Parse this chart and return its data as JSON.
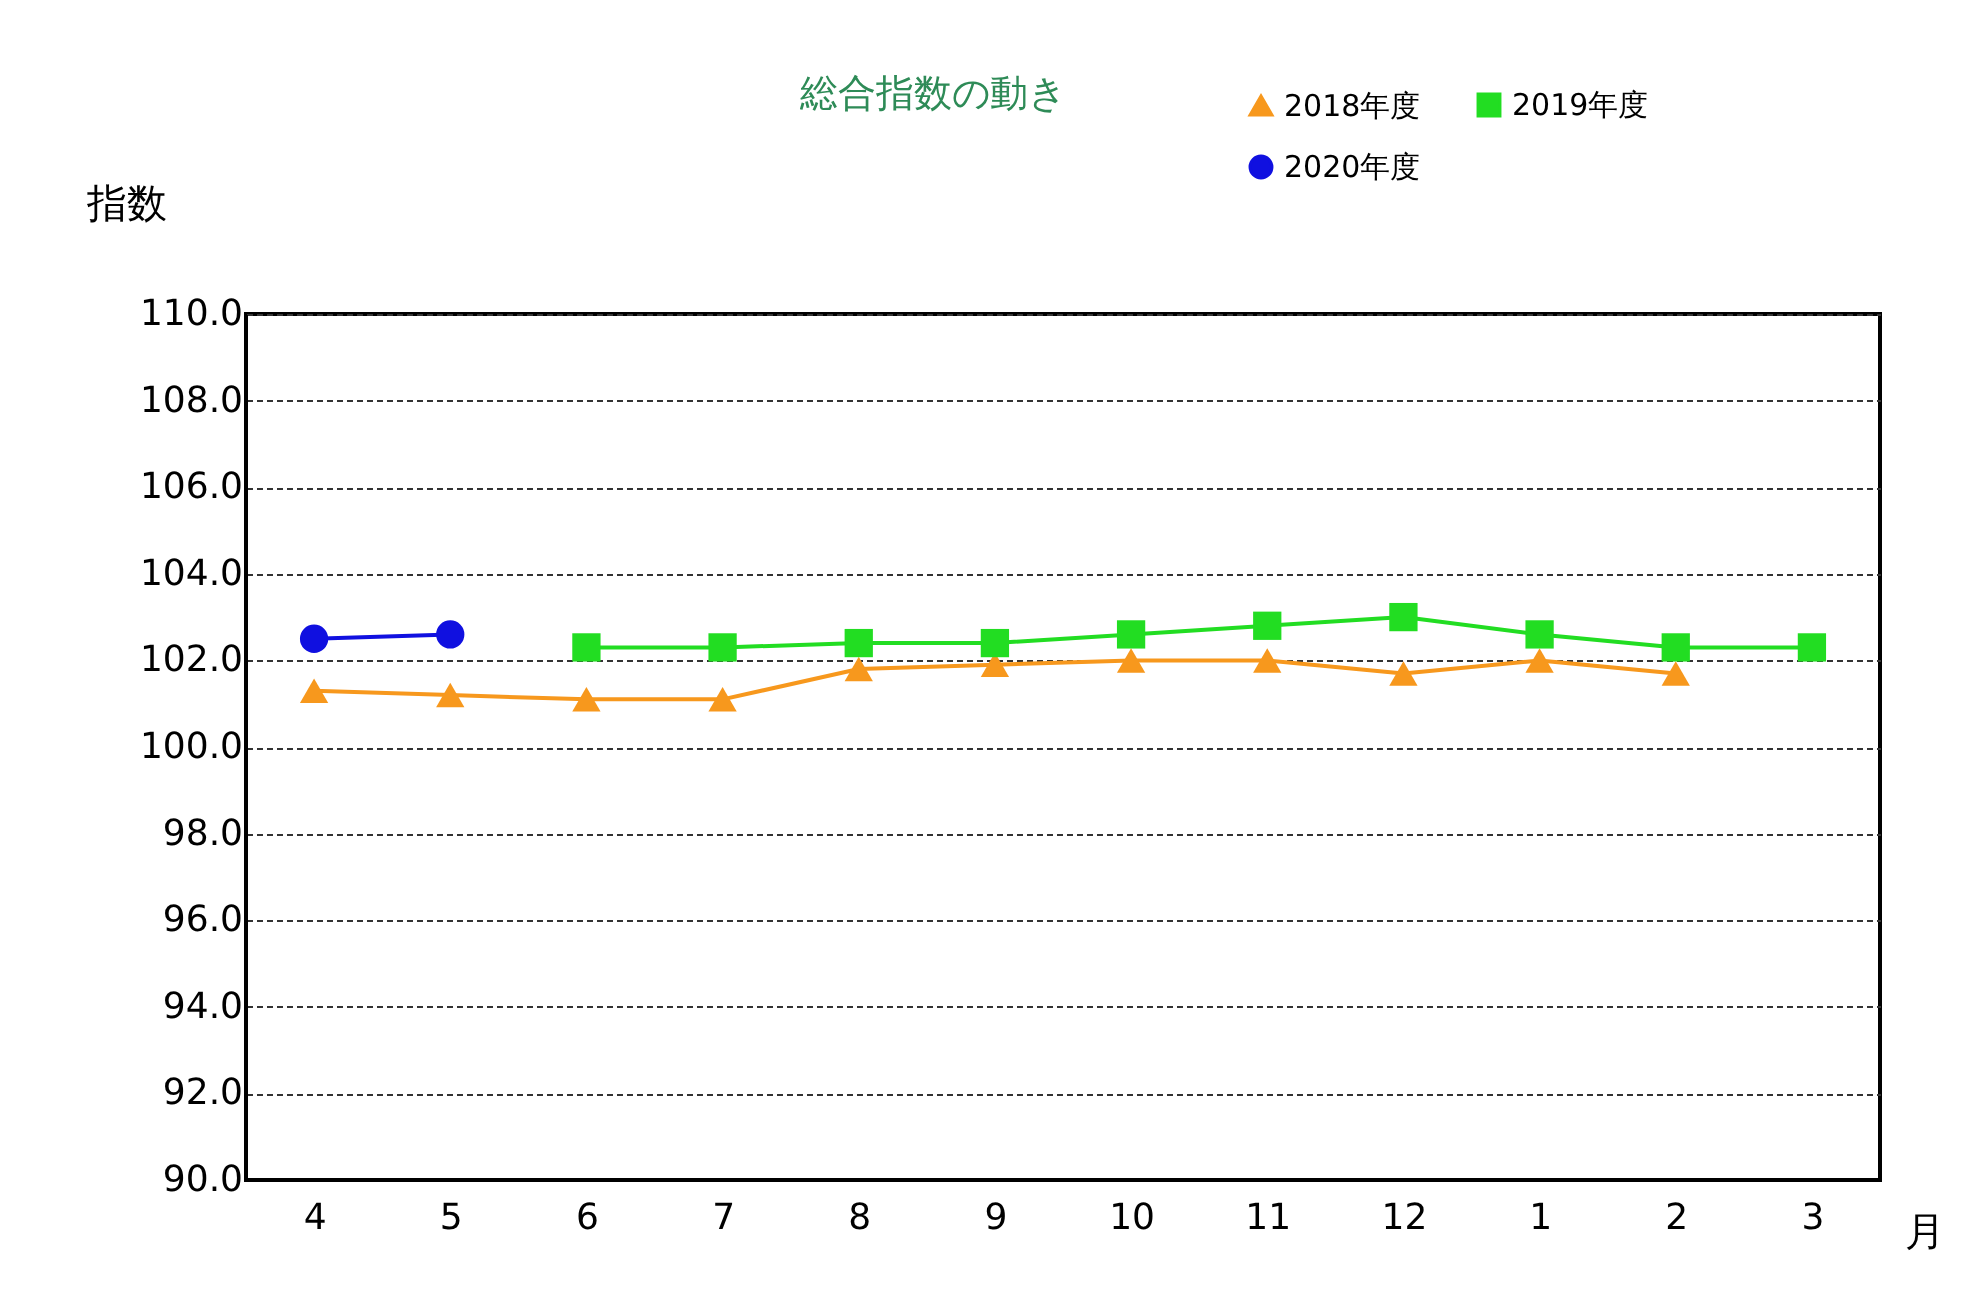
{
  "chart_data": {
    "type": "line",
    "title": "総合指数の動き",
    "xlabel": "月",
    "ylabel": "指数",
    "categories": [
      "4",
      "5",
      "6",
      "7",
      "8",
      "9",
      "10",
      "11",
      "12",
      "1",
      "2",
      "3"
    ],
    "ylim": [
      90,
      110
    ],
    "yticks": [
      {
        "value": 90,
        "label": "90.0"
      },
      {
        "value": 92,
        "label": "92.0"
      },
      {
        "value": 94,
        "label": "94.0"
      },
      {
        "value": 96,
        "label": "96.0"
      },
      {
        "value": 98,
        "label": "98.0"
      },
      {
        "value": 100,
        "label": "100.0"
      },
      {
        "value": 102,
        "label": "102.0"
      },
      {
        "value": 104,
        "label": "104.0"
      },
      {
        "value": 106,
        "label": "106.0"
      },
      {
        "value": 108,
        "label": "108.0"
      },
      {
        "value": 110,
        "label": "110.0"
      }
    ],
    "grid": "y",
    "legend": "top right",
    "series": [
      {
        "name": "2018年度",
        "color": "#f7981d",
        "marker": "triangle",
        "values": [
          101.3,
          101.2,
          101.1,
          101.1,
          101.8,
          101.9,
          102.0,
          102.0,
          101.7,
          102.0,
          101.7,
          null
        ]
      },
      {
        "name": "2019年度",
        "color": "#22dd22",
        "marker": "square",
        "values": [
          null,
          null,
          102.3,
          102.3,
          102.4,
          102.4,
          102.6,
          102.8,
          103.0,
          102.6,
          102.3,
          102.3
        ]
      },
      {
        "name": "2020年度",
        "color": "#1010e0",
        "marker": "circle",
        "values": [
          102.5,
          102.6,
          null,
          null,
          null,
          null,
          null,
          null,
          null,
          null,
          null,
          null
        ]
      }
    ]
  }
}
